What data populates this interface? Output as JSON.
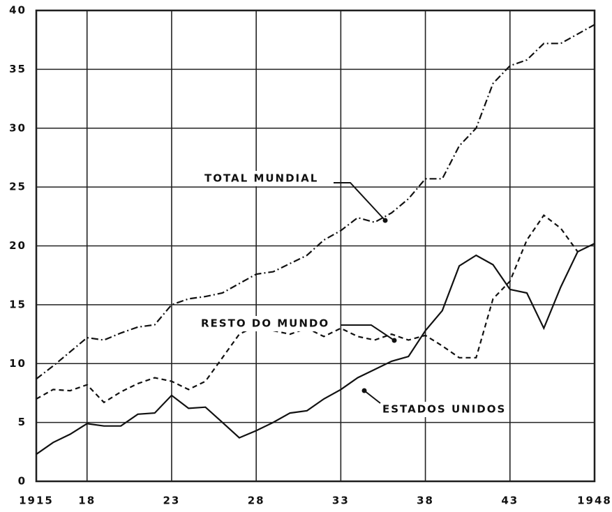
{
  "chart_data": {
    "type": "line",
    "x": [
      1915,
      1916,
      1917,
      1918,
      1919,
      1920,
      1921,
      1922,
      1923,
      1924,
      1925,
      1926,
      1927,
      1928,
      1929,
      1930,
      1931,
      1932,
      1933,
      1934,
      1935,
      1936,
      1937,
      1938,
      1939,
      1940,
      1941,
      1942,
      1943,
      1944,
      1945,
      1946,
      1947,
      1948
    ],
    "series": [
      {
        "name": "TOTAL MUNDIAL",
        "color": "#111111",
        "style": "dashdot",
        "values": [
          8.7,
          9.8,
          11,
          12.2,
          12,
          12.6,
          13.1,
          13.3,
          15,
          15.5,
          15.7,
          16,
          16.8,
          17.6,
          17.8,
          18.5,
          19.2,
          20.5,
          21.3,
          22.4,
          22,
          22.8,
          24,
          25.7,
          25.7,
          28.5,
          30,
          33.8,
          35.3,
          35.8,
          37.2,
          37.2,
          38,
          38.8
        ]
      },
      {
        "name": "RESTO DO MUNDO",
        "color": "#111111",
        "style": "dashed",
        "values": [
          7,
          7.8,
          7.7,
          8.2,
          6.7,
          7.6,
          8.3,
          8.8,
          8.5,
          7.8,
          8.5,
          10.5,
          12.5,
          13.2,
          12.8,
          12.5,
          13,
          12.3,
          13,
          12.3,
          12,
          12.5,
          12,
          12.4,
          11.5,
          10.5,
          10.5,
          15.5,
          17,
          20.5,
          22.6,
          21.5,
          19.5,
          null
        ]
      },
      {
        "name": "ESTADOS UNIDOS",
        "color": "#111111",
        "style": "solid",
        "values": [
          2.3,
          3.3,
          4,
          4.9,
          4.7,
          4.7,
          5.7,
          5.8,
          7.3,
          6.2,
          6.3,
          5,
          3.7,
          4.3,
          5,
          5.8,
          6,
          7,
          7.8,
          8.8,
          9.5,
          10.2,
          10.6,
          12.8,
          14.5,
          18.3,
          19.2,
          18.4,
          16.3,
          16,
          13,
          16.5,
          19.5,
          20.2
        ]
      }
    ],
    "xlim": [
      1915,
      1948
    ],
    "xticks": [
      1915,
      {
        "value": 1918,
        "label": "18"
      },
      {
        "value": 1923,
        "label": "23"
      },
      {
        "value": 1928,
        "label": "28"
      },
      {
        "value": 1933,
        "label": "33"
      },
      {
        "value": 1938,
        "label": "38"
      },
      {
        "value": 1943,
        "label": "43"
      },
      1948
    ],
    "ylim": [
      0,
      40
    ],
    "yticks": [
      0,
      5,
      10,
      15,
      20,
      25,
      30,
      35,
      40
    ],
    "grid": true
  }
}
